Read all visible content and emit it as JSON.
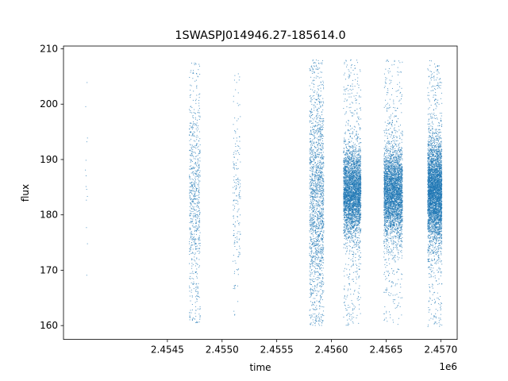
{
  "chart_data": {
    "type": "scatter",
    "title": "1SWASPJ014946.27-185614.0",
    "xlabel": "time",
    "ylabel": "flux",
    "x_offset_label": "1e6",
    "xlim": [
      2453550,
      2457150
    ],
    "ylim": [
      157.5,
      210.5
    ],
    "x_ticks": [
      2454500,
      2455000,
      2455500,
      2456000,
      2456500,
      2457000
    ],
    "x_tick_labels": [
      "2.4545",
      "2.4550",
      "2.4555",
      "2.4560",
      "2.4565",
      "2.4570"
    ],
    "y_ticks": [
      160,
      170,
      180,
      190,
      200,
      210
    ],
    "y_tick_labels": [
      "160",
      "170",
      "180",
      "190",
      "200",
      "210"
    ],
    "grid": false,
    "marker_color": "#1f77b4",
    "series": [
      {
        "clusters": [
          {
            "x_range": [
              2453750,
              2453770
            ],
            "y_center": 186,
            "y_spread": 14,
            "y_min": 168,
            "y_max": 205,
            "points": 14
          },
          {
            "x_range": [
              2454700,
              2454800
            ],
            "y_center": 183,
            "y_spread": 11,
            "y_min": 160.5,
            "y_max": 207.5,
            "points": 700
          },
          {
            "x_range": [
              2455100,
              2455170
            ],
            "y_center": 183,
            "y_spread": 10,
            "y_min": 161,
            "y_max": 205.5,
            "points": 180
          },
          {
            "x_range": [
              2455800,
              2455930
            ],
            "y_center": 183,
            "y_spread": 11,
            "y_min": 160,
            "y_max": 208,
            "points": 1700
          },
          {
            "x_range": [
              2456110,
              2456270
            ],
            "y_center": 184,
            "y_spread": 4,
            "y_min": 160,
            "y_max": 208,
            "points": 3600
          },
          {
            "x_range": [
              2456480,
              2456650
            ],
            "y_center": 184,
            "y_spread": 4,
            "y_min": 160,
            "y_max": 208,
            "points": 3600
          },
          {
            "x_range": [
              2456880,
              2457010
            ],
            "y_center": 184,
            "y_spread": 4.5,
            "y_min": 159.5,
            "y_max": 208,
            "points": 4200
          }
        ]
      }
    ]
  }
}
